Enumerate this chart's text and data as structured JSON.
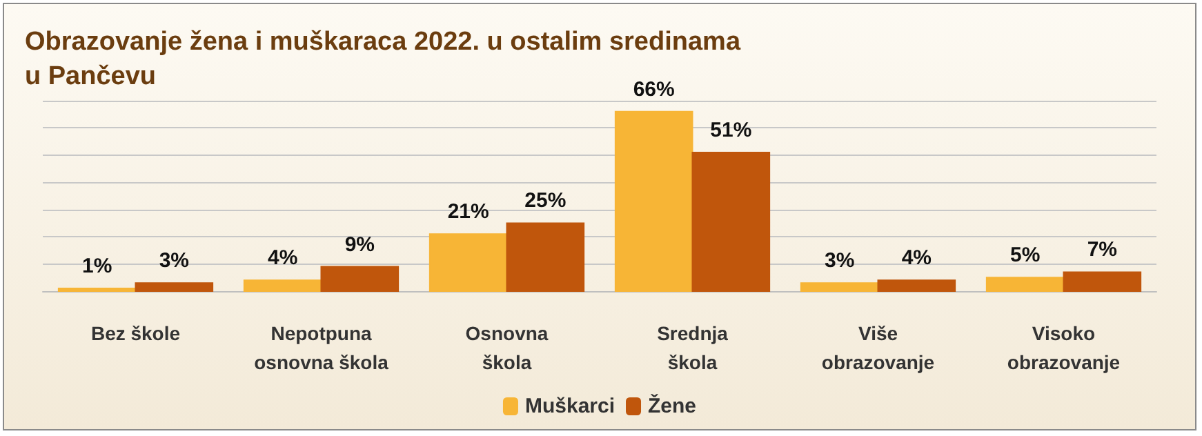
{
  "chart_data": {
    "type": "bar",
    "title": "Obrazovanje žena i muškaraca 2022. u ostalim sredinama\nu Pančevu",
    "categories": [
      "Bez škole",
      "Nepotpuna\nosnovna škola",
      "Osnovna\nškola",
      "Srednja\nškola",
      "Više\nobrazovanje",
      "Visoko\nobrazovanje"
    ],
    "series": [
      {
        "name": "Muškarci",
        "color": "#f7b536",
        "values": [
          1,
          4,
          21,
          66,
          3,
          5
        ],
        "value_labels": [
          "1%",
          "4%",
          "21%",
          "66%",
          "3%",
          "5%"
        ]
      },
      {
        "name": "Žene",
        "color": "#c0560c",
        "values": [
          3,
          9,
          25,
          51,
          4,
          7
        ],
        "value_labels": [
          "3%",
          "9%",
          "25%",
          "51%",
          "4%",
          "7%"
        ]
      }
    ],
    "ylim": [
      0,
      70
    ],
    "yticks": [
      {
        "value": 0,
        "label": null
      },
      {
        "value": 10,
        "label": null
      },
      {
        "value": 20,
        "label": null
      },
      {
        "value": 30,
        "label": null
      },
      {
        "value": 40,
        "label": null
      },
      {
        "value": 50,
        "label": null
      },
      {
        "value": 60,
        "label": null
      },
      {
        "value": 70,
        "label": null
      }
    ],
    "grid": true,
    "legend": "bottom",
    "tick_labels": "x"
  }
}
